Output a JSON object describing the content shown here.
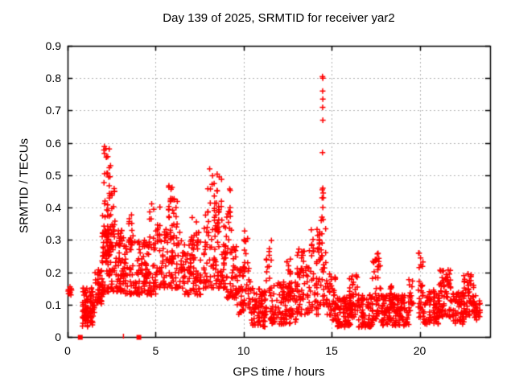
{
  "chart_data": {
    "type": "scatter",
    "title": "Day 139 of 2025, SRMTID for receiver yar2",
    "xlabel": "GPS time / hours",
    "ylabel": "SRMTID / TECUs",
    "xlim": [
      0,
      24
    ],
    "ylim": [
      0,
      0.9
    ],
    "xticks": [
      0,
      5,
      10,
      15,
      20
    ],
    "ytick_labels": [
      "0",
      "0.1",
      "0.2",
      "0.3",
      "0.4",
      "0.5",
      "0.6",
      "0.7",
      "0.8",
      "0.9"
    ],
    "ytick_values": [
      0,
      0.1,
      0.2,
      0.3,
      0.4,
      0.5,
      0.6,
      0.7,
      0.8,
      0.9
    ],
    "grid": true,
    "legend": "none",
    "marker": "plus",
    "marker_color": "#ff0000",
    "grid_color": "#b0b0b0",
    "border_color": "#000000",
    "peak_points": [
      [
        14.48,
        0.805
      ],
      [
        14.5,
        0.8
      ],
      [
        14.49,
        0.76
      ],
      [
        14.5,
        0.735
      ],
      [
        14.49,
        0.71
      ],
      [
        14.5,
        0.67
      ],
      [
        14.48,
        0.57
      ],
      [
        14.47,
        0.455
      ],
      [
        14.5,
        0.46
      ],
      [
        14.52,
        0.445
      ],
      [
        14.46,
        0.43
      ],
      [
        14.53,
        0.43
      ],
      [
        14.5,
        0.4
      ]
    ],
    "zero_markers": [
      {
        "t": 0.72,
        "style": "square"
      },
      {
        "t": 3.15,
        "style": "tick"
      },
      {
        "t": 4.05,
        "style": "square"
      }
    ],
    "cluster_format": [
      "t_start_hours",
      "t_end_hours",
      "y_min_TECUs",
      "y_max_TECUs",
      "n_points",
      "low_bias_exponent",
      "x_columns"
    ],
    "clusters": [
      [
        0.02,
        0.25,
        0.125,
        0.155,
        9,
        1.0,
        3
      ],
      [
        0.75,
        1.05,
        0.03,
        0.09,
        18,
        1.0,
        4
      ],
      [
        0.85,
        1.55,
        0.06,
        0.155,
        70,
        1.3,
        10
      ],
      [
        1.1,
        1.45,
        0.03,
        0.07,
        12,
        1.0,
        5
      ],
      [
        1.55,
        2.0,
        0.1,
        0.22,
        45,
        1.2,
        7
      ],
      [
        1.95,
        2.2,
        0.12,
        0.38,
        30,
        1.3,
        5
      ],
      [
        2.05,
        2.45,
        0.25,
        0.61,
        45,
        1.4,
        6
      ],
      [
        2.2,
        3.2,
        0.14,
        0.33,
        110,
        1.5,
        14
      ],
      [
        2.35,
        2.7,
        0.33,
        0.47,
        18,
        1.2,
        5
      ],
      [
        3.2,
        4.1,
        0.13,
        0.3,
        70,
        1.4,
        12
      ],
      [
        3.45,
        3.75,
        0.28,
        0.38,
        12,
        1.0,
        4
      ],
      [
        4.1,
        5.1,
        0.13,
        0.3,
        80,
        1.4,
        13
      ],
      [
        4.6,
        5.3,
        0.28,
        0.44,
        20,
        1.2,
        6
      ],
      [
        5.2,
        6.6,
        0.15,
        0.35,
        110,
        1.4,
        16
      ],
      [
        5.7,
        6.3,
        0.33,
        0.47,
        22,
        1.2,
        6
      ],
      [
        6.6,
        7.6,
        0.13,
        0.3,
        75,
        1.4,
        12
      ],
      [
        7.0,
        7.5,
        0.28,
        0.4,
        12,
        1.2,
        4
      ],
      [
        7.7,
        9.0,
        0.15,
        0.38,
        110,
        1.4,
        15
      ],
      [
        7.9,
        8.8,
        0.38,
        0.52,
        25,
        1.1,
        7
      ],
      [
        9.0,
        9.6,
        0.12,
        0.3,
        45,
        1.3,
        8
      ],
      [
        9.0,
        9.35,
        0.3,
        0.46,
        14,
        1.1,
        4
      ],
      [
        9.6,
        10.4,
        0.07,
        0.22,
        55,
        1.3,
        10
      ],
      [
        10.0,
        10.25,
        0.2,
        0.35,
        10,
        1.0,
        3
      ],
      [
        10.4,
        11.3,
        0.03,
        0.15,
        85,
        1.3,
        12
      ],
      [
        11.25,
        11.6,
        0.13,
        0.3,
        16,
        1.1,
        4
      ],
      [
        11.5,
        13.0,
        0.04,
        0.17,
        120,
        1.4,
        18
      ],
      [
        12.4,
        12.7,
        0.15,
        0.25,
        10,
        1.0,
        3
      ],
      [
        13.0,
        14.35,
        0.07,
        0.28,
        100,
        1.4,
        16
      ],
      [
        13.8,
        14.35,
        0.25,
        0.34,
        14,
        1.0,
        5
      ],
      [
        14.35,
        14.7,
        0.1,
        0.38,
        30,
        1.3,
        5
      ],
      [
        14.7,
        15.3,
        0.05,
        0.2,
        45,
        1.3,
        8
      ],
      [
        15.3,
        16.1,
        0.03,
        0.13,
        80,
        1.3,
        12
      ],
      [
        16.0,
        16.5,
        0.06,
        0.21,
        45,
        1.3,
        7
      ],
      [
        16.5,
        17.35,
        0.03,
        0.13,
        70,
        1.3,
        11
      ],
      [
        17.3,
        17.8,
        0.05,
        0.27,
        45,
        1.4,
        7
      ],
      [
        17.8,
        19.4,
        0.035,
        0.13,
        140,
        1.3,
        20
      ],
      [
        18.3,
        18.65,
        0.1,
        0.175,
        15,
        1.0,
        5
      ],
      [
        19.3,
        19.65,
        0.08,
        0.19,
        18,
        1.1,
        5
      ],
      [
        19.9,
        20.2,
        0.06,
        0.26,
        30,
        1.4,
        5
      ],
      [
        20.2,
        21.15,
        0.04,
        0.15,
        75,
        1.3,
        12
      ],
      [
        21.1,
        21.95,
        0.06,
        0.21,
        70,
        1.3,
        11
      ],
      [
        21.9,
        22.55,
        0.04,
        0.14,
        55,
        1.3,
        9
      ],
      [
        22.5,
        23.1,
        0.06,
        0.2,
        45,
        1.3,
        8
      ],
      [
        23.0,
        23.45,
        0.05,
        0.13,
        30,
        1.2,
        6
      ]
    ]
  }
}
